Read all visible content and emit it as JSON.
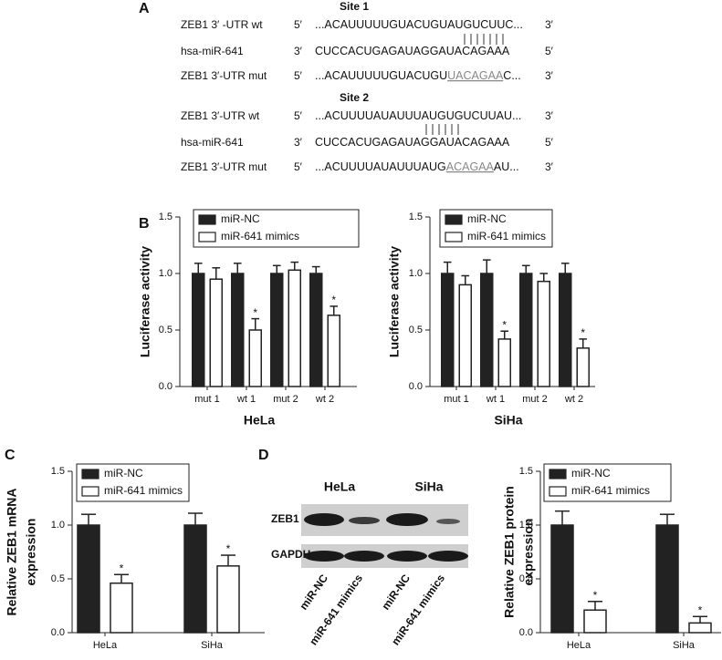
{
  "panel_labels": [
    "A",
    "B",
    "C",
    "D"
  ],
  "sequence_alignment": {
    "sites": [
      {
        "title": "Site 1",
        "rows": [
          {
            "name": "ZEB1 3′ -UTR wt",
            "left": "5′",
            "seq": [
              {
                "text": "...ACAUUUUUGUACUGUAUGUCUUC..."
              }
            ],
            "right": "3′"
          },
          {
            "name": "hsa-miR-641",
            "left": "3′",
            "seq": [
              {
                "text": "CUCCACUGAGAUAGGAUACAGAAA"
              }
            ],
            "right": "5′"
          },
          {
            "name": "ZEB1 3′-UTR mut",
            "left": "5′",
            "seq": [
              {
                "text": "...ACAUUUUUGUACUGU"
              },
              {
                "text": "UACAGAA",
                "mutated": true
              },
              {
                "text": "C..."
              }
            ],
            "right": "3′"
          }
        ]
      },
      {
        "title": "Site 2",
        "rows": [
          {
            "name": "ZEB1 3′-UTR wt",
            "left": "5′",
            "seq": [
              {
                "text": "...ACUUUUAUAUUUAUGUGUCUUAU..."
              }
            ],
            "right": "3′"
          },
          {
            "name": "hsa-miR-641",
            "left": "3′",
            "seq": [
              {
                "text": "CUCCACUGAGAUAGGAUACAGAAA"
              }
            ],
            "right": "5′"
          },
          {
            "name": "ZEB1 3′-UTR mut",
            "left": "5′",
            "seq": [
              {
                "text": "...ACUUUUAUAUUUAUG"
              },
              {
                "text": "ACAGAA",
                "mutated": true
              },
              {
                "text": "AU..."
              }
            ],
            "right": "3′"
          }
        ]
      }
    ]
  },
  "western_blot": {
    "cell_lines": [
      "HeLa",
      "SiHa"
    ],
    "proteins": [
      "ZEB1",
      "GAPDH"
    ],
    "lanes": [
      "miR-NC",
      "miR-641 mimics",
      "miR-NC",
      "miR-641 mimics"
    ]
  },
  "chart_data": [
    {
      "type": "bar",
      "xlabel": "HeLa",
      "ylabel": [
        "Luciferase activity"
      ],
      "categories": [
        "mut 1",
        "wt 1",
        "mut 2",
        "wt 2"
      ],
      "series": [
        {
          "name": "miR-NC",
          "color": "#222222",
          "values": [
            1.0,
            1.0,
            1.0,
            1.0
          ],
          "errors": [
            0.09,
            0.09,
            0.07,
            0.06
          ],
          "annotations": [
            null,
            null,
            null,
            null
          ]
        },
        {
          "name": "miR-641 mimics",
          "color": "#ffffff",
          "values": [
            0.95,
            0.5,
            1.03,
            0.63
          ],
          "errors": [
            0.1,
            0.1,
            0.07,
            0.08
          ],
          "annotations": [
            null,
            "*",
            null,
            "*"
          ]
        }
      ],
      "ylim": [
        0,
        1.5
      ],
      "yticks": [
        {
          "value": 0,
          "label": "0.0"
        },
        0.5,
        {
          "value": 1,
          "label": "1.0"
        },
        1.5
      ]
    },
    {
      "type": "bar",
      "xlabel": "SiHa",
      "ylabel": [
        "Luciferase activity"
      ],
      "categories": [
        "mut 1",
        "wt 1",
        "mut 2",
        "wt 2"
      ],
      "series": [
        {
          "name": "miR-NC",
          "color": "#222222",
          "values": [
            1.0,
            1.0,
            1.0,
            1.0
          ],
          "errors": [
            0.1,
            0.12,
            0.07,
            0.09
          ],
          "annotations": [
            null,
            null,
            null,
            null
          ]
        },
        {
          "name": "miR-641 mimics",
          "color": "#ffffff",
          "values": [
            0.9,
            0.42,
            0.93,
            0.34
          ],
          "errors": [
            0.08,
            0.07,
            0.07,
            0.08
          ],
          "annotations": [
            null,
            "*",
            null,
            "*"
          ]
        }
      ],
      "ylim": [
        0,
        1.5
      ],
      "yticks": [
        {
          "value": 0,
          "label": "0.0"
        },
        0.5,
        {
          "value": 1,
          "label": "1.0"
        },
        1.5
      ]
    },
    {
      "type": "bar",
      "ylabel": [
        "Relative ZEB1 mRNA",
        "expression"
      ],
      "categories": [
        "HeLa",
        "SiHa"
      ],
      "series": [
        {
          "name": "miR-NC",
          "color": "#222222",
          "values": [
            1.0,
            1.0
          ],
          "errors": [
            0.1,
            0.11
          ],
          "annotations": [
            null,
            null
          ]
        },
        {
          "name": "miR-641 mimics",
          "color": "#ffffff",
          "values": [
            0.46,
            0.62
          ],
          "errors": [
            0.08,
            0.1
          ],
          "annotations": [
            "*",
            "*"
          ]
        }
      ],
      "ylim": [
        0,
        1.5
      ],
      "yticks": [
        {
          "value": 0,
          "label": "0.0"
        },
        0.5,
        {
          "value": 1,
          "label": "1.0"
        },
        1.5
      ]
    },
    {
      "type": "bar",
      "ylabel": [
        "Relative ZEB1 protein",
        "expression"
      ],
      "categories": [
        "HeLa",
        "SiHa"
      ],
      "series": [
        {
          "name": "miR-NC",
          "color": "#222222",
          "values": [
            1.0,
            1.0
          ],
          "errors": [
            0.13,
            0.1
          ],
          "annotations": [
            null,
            null
          ]
        },
        {
          "name": "miR-641 mimics",
          "color": "#ffffff",
          "values": [
            0.21,
            0.09
          ],
          "errors": [
            0.08,
            0.06
          ],
          "annotations": [
            "*",
            "*"
          ]
        }
      ],
      "ylim": [
        0,
        1.5
      ],
      "yticks": [
        {
          "value": 0,
          "label": "0.0"
        },
        0.5,
        {
          "value": 1,
          "label": "1.0"
        },
        1.5
      ]
    }
  ]
}
